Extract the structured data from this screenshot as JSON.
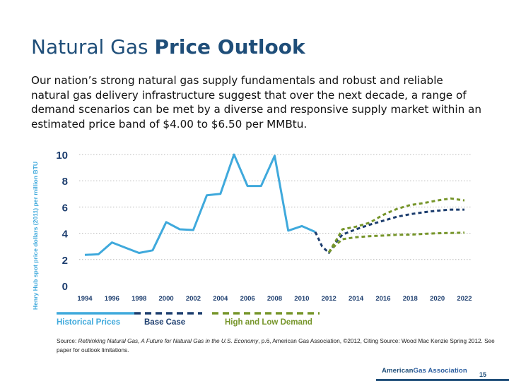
{
  "slide": {
    "title_regular": "Natural Gas ",
    "title_bold": "Price Outlook",
    "intro": "Our nation’s strong natural gas supply fundamentals and robust and reliable natural gas delivery infrastructure suggest that over the next decade, a range of demand scenarios can be met by a diverse and responsive supply market within an estimated price band of $4.00 to $6.50 per MMBtu.",
    "source_prefix": "Source: ",
    "source_italic": "Rethinking Natural Gas, A Future for Natural Gas in the U.S. Economy",
    "source_suffix": ", p.6, American Gas Association, ©2012, Citing Source: Wood Mac Kenzie Spring 2012. See paper for outlook limitations.",
    "footer_org_a": "American",
    "footer_org_b": "Gas Association",
    "page_number": "15"
  },
  "chart_data": {
    "type": "line",
    "title": "",
    "xlabel": "",
    "ylabel": "Henry Hub spot price dollars (2011) per million BTU",
    "xlim": [
      1994,
      2022
    ],
    "ylim": [
      0,
      10
    ],
    "x_ticks": [
      "1994",
      "1996",
      "1998",
      "2000",
      "2002",
      "2004",
      "2006",
      "2008",
      "2010",
      "2012",
      "2014",
      "2016",
      "2018",
      "2020",
      "2022"
    ],
    "y_ticks": [
      "0",
      "2",
      "4",
      "6",
      "8",
      "10"
    ],
    "grid": "horizontal dotted",
    "legend_position": "bottom",
    "legend": [
      "Historical Prices",
      "Base Case",
      "High and Low Demand"
    ],
    "colors": {
      "historical": "#3fa9dc",
      "base": "#1c3d6e",
      "demand": "#76952a",
      "tick_text": "#1c3d6e",
      "grid": "#b8b8b8"
    },
    "series": [
      {
        "name": "Historical Prices",
        "style": "solid",
        "x": [
          1994,
          1995,
          1996,
          1997,
          1998,
          1999,
          2000,
          2001,
          2002,
          2003,
          2004,
          2005,
          2006,
          2007,
          2008,
          2009,
          2010,
          2011
        ],
        "y": [
          2.35,
          2.4,
          3.3,
          2.9,
          2.5,
          2.7,
          4.85,
          4.3,
          4.25,
          6.9,
          7.0,
          10.0,
          7.6,
          7.6,
          9.9,
          4.2,
          4.55,
          4.1
        ]
      },
      {
        "name": "Base Case",
        "style": "dashed",
        "x": [
          2011,
          2011.5,
          2012,
          2012.5,
          2013,
          2014,
          2015,
          2016,
          2017,
          2018,
          2019,
          2020,
          2021,
          2022
        ],
        "y": [
          4.1,
          3.0,
          2.5,
          3.3,
          3.9,
          4.3,
          4.65,
          4.95,
          5.25,
          5.45,
          5.6,
          5.72,
          5.8,
          5.8
        ]
      },
      {
        "name": "High Demand",
        "style": "dashed",
        "x": [
          2012,
          2012.5,
          2013,
          2014,
          2015,
          2016,
          2017,
          2018,
          2019,
          2020,
          2021,
          2022
        ],
        "y": [
          2.55,
          3.4,
          4.3,
          4.5,
          4.8,
          5.4,
          5.85,
          6.15,
          6.3,
          6.5,
          6.65,
          6.5
        ]
      },
      {
        "name": "Low Demand",
        "style": "dashed",
        "x": [
          2012,
          2012.5,
          2013,
          2014,
          2015,
          2016,
          2017,
          2018,
          2019,
          2020,
          2021,
          2022
        ],
        "y": [
          2.55,
          3.1,
          3.55,
          3.7,
          3.78,
          3.82,
          3.88,
          3.9,
          3.95,
          4.0,
          4.02,
          4.05
        ]
      }
    ]
  }
}
